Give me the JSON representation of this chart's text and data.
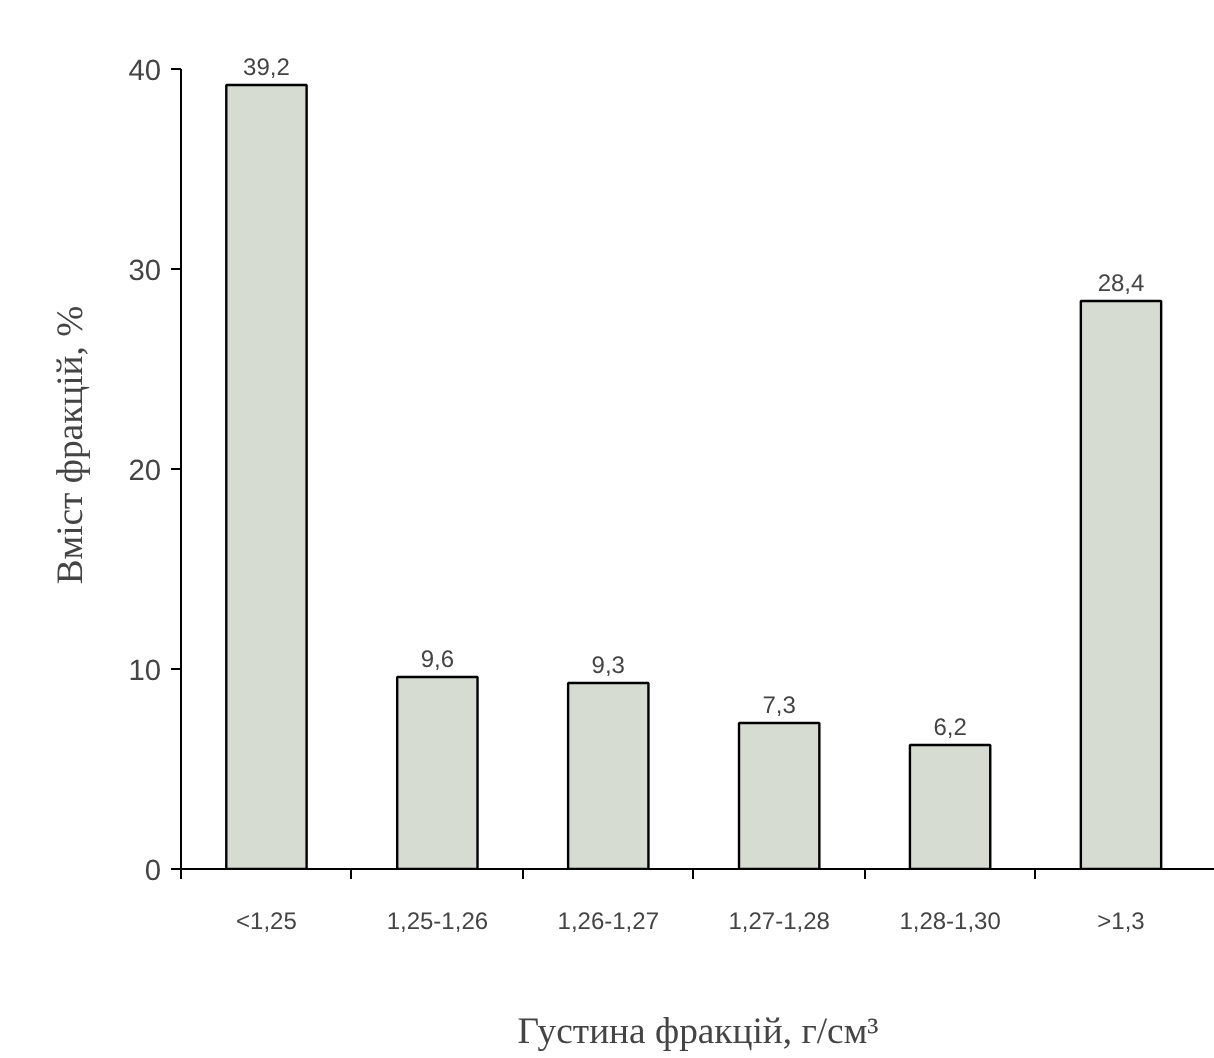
{
  "chart_data": {
    "type": "bar",
    "xlabel": "Густина фракцій, г/см³",
    "ylabel": "Вміст фракцій, %",
    "categories": [
      "<1,25",
      "1,25-1,26",
      "1,26-1,27",
      "1,27-1,28",
      "1,28-1,30",
      ">1,3"
    ],
    "values": [
      39.2,
      9.6,
      9.3,
      7.3,
      6.2,
      28.4
    ],
    "value_labels": [
      "39,2",
      "9,6",
      "9,3",
      "7,3",
      "6,2",
      "28,4"
    ],
    "color": "#d6dcd2",
    "ylim": [
      0,
      40
    ],
    "yticks": [
      0,
      10,
      20,
      30,
      40
    ],
    "grid": false
  }
}
